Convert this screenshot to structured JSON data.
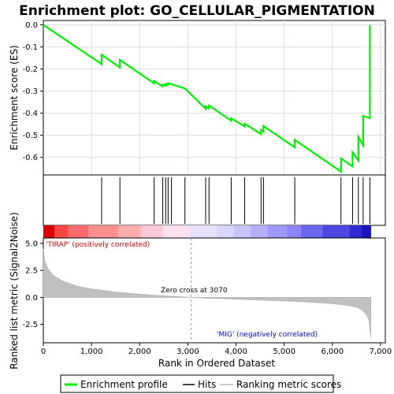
{
  "chart_data": {
    "type": "line",
    "title": "Enrichment plot: GO_CELLULAR_PIGMENTATION",
    "top_panel": {
      "ylabel": "Enrichment score (ES)",
      "ylim": [
        -0.68,
        0.02
      ],
      "yticks": [
        0.0,
        -0.1,
        -0.2,
        -0.3,
        -0.4,
        -0.5,
        -0.6
      ],
      "ytick_labels": [
        "0.0",
        "-0.1",
        "-0.2",
        "-0.3",
        "-0.4",
        "-0.5",
        "-0.6"
      ],
      "grid": true,
      "series_color": "#00ee00"
    },
    "hits": [
      1210,
      1590,
      2300,
      2480,
      2540,
      2590,
      2660,
      2940,
      3370,
      3440,
      3900,
      4180,
      4520,
      4570,
      5220,
      6180,
      6420,
      6540,
      6640,
      6780
    ],
    "es_before_hit": [
      -0.178,
      -0.193,
      -0.265,
      -0.279,
      -0.276,
      -0.272,
      -0.269,
      -0.288,
      -0.38,
      -0.379,
      -0.434,
      -0.46,
      -0.495,
      -0.484,
      -0.555,
      -0.665,
      -0.642,
      -0.615,
      -0.546,
      -0.423
    ],
    "es_after_hit": [
      -0.135,
      -0.159,
      -0.254,
      -0.271,
      -0.268,
      -0.264,
      -0.269,
      -0.288,
      -0.369,
      -0.365,
      -0.423,
      -0.448,
      -0.476,
      -0.458,
      -0.521,
      -0.605,
      -0.577,
      -0.508,
      -0.412,
      0.0
    ],
    "middle_panel": {
      "positive_label": "'TIRAP' (positively correlated)",
      "negative_label": "'MIG' (negatively correlated)"
    },
    "bottom_panel": {
      "ylabel": "Ranked list metric (Signal2Noise)",
      "xlabel": "Rank in Ordered Dataset",
      "ylim": [
        -4.2,
        5.5
      ],
      "yticks": [
        5.0,
        2.5,
        0.0,
        -2.5
      ],
      "ytick_labels": [
        "5.0",
        "2.5",
        "0.0",
        "-2.5"
      ],
      "xlim": [
        0,
        7100
      ],
      "xticks": [
        0,
        1000,
        2000,
        3000,
        4000,
        5000,
        6000,
        7000
      ],
      "xtick_labels": [
        "0",
        "1,000",
        "2,000",
        "3,000",
        "4,000",
        "5,000",
        "6,000",
        "7,000"
      ],
      "zero_cross_label": "Zero cross at 3070",
      "zero_cross": 3070,
      "metric_profile": [
        [
          0,
          4.5
        ],
        [
          30,
          3.4
        ],
        [
          100,
          2.6
        ],
        [
          200,
          2.05
        ],
        [
          400,
          1.5
        ],
        [
          700,
          1.05
        ],
        [
          1000,
          0.78
        ],
        [
          1500,
          0.5
        ],
        [
          2000,
          0.3
        ],
        [
          2500,
          0.15
        ],
        [
          3070,
          0.0
        ],
        [
          3600,
          -0.1
        ],
        [
          4200,
          -0.2
        ],
        [
          5000,
          -0.33
        ],
        [
          5600,
          -0.45
        ],
        [
          6000,
          -0.58
        ],
        [
          6300,
          -0.72
        ],
        [
          6500,
          -0.9
        ],
        [
          6600,
          -1.1
        ],
        [
          6700,
          -1.5
        ],
        [
          6760,
          -2.1
        ],
        [
          6800,
          -3.7
        ]
      ]
    },
    "legend": [
      "Enrichment profile",
      "Hits",
      "Ranking metric scores"
    ],
    "total_rank": 6805
  }
}
